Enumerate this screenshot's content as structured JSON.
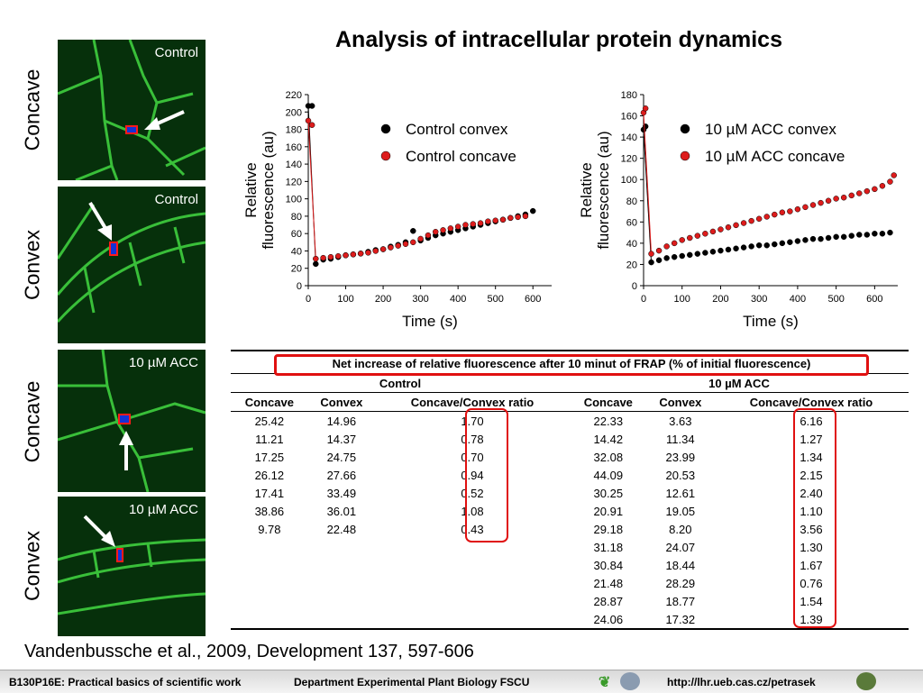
{
  "slide": {
    "title": "Analysis of intracellular protein dynamics",
    "caption": "Vandenbussche et al., 2009, Development 137, 597-606"
  },
  "images": [
    {
      "label": "Control",
      "side": "Concave"
    },
    {
      "label": "Control",
      "side": "Convex"
    },
    {
      "label": "10 µM ACC",
      "side": "Concave"
    },
    {
      "label": "10 µM ACC",
      "side": "Convex"
    }
  ],
  "chart_data": [
    {
      "type": "scatter",
      "xlabel": "Time (s)",
      "ylabel": "Relative fluorescence (au)",
      "xlim": [
        0,
        650
      ],
      "ylim": [
        0,
        220
      ],
      "xticks": [
        0,
        100,
        200,
        300,
        400,
        500,
        600
      ],
      "yticks": [
        0,
        20,
        40,
        60,
        80,
        100,
        120,
        140,
        160,
        180,
        200,
        220
      ],
      "legend_position": "top-right",
      "series": [
        {
          "name": "Control convex",
          "color": "#000000",
          "x": [
            0,
            10,
            20,
            40,
            60,
            80,
            100,
            120,
            140,
            160,
            180,
            200,
            220,
            240,
            260,
            280,
            300,
            320,
            340,
            360,
            380,
            400,
            420,
            440,
            460,
            480,
            500,
            520,
            540,
            560,
            580,
            600
          ],
          "y": [
            207,
            207,
            25,
            30,
            31,
            33,
            35,
            36,
            37,
            39,
            41,
            42,
            45,
            47,
            50,
            63,
            52,
            55,
            58,
            60,
            62,
            64,
            66,
            68,
            70,
            72,
            74,
            76,
            78,
            80,
            82,
            86
          ]
        },
        {
          "name": "Control concave",
          "color": "#dd1c1c",
          "x": [
            0,
            10,
            20,
            40,
            60,
            80,
            100,
            120,
            140,
            160,
            180,
            200,
            220,
            240,
            260,
            280,
            300,
            320,
            340,
            360,
            380,
            400,
            420,
            440,
            460,
            480,
            500,
            520,
            540,
            560,
            580
          ],
          "y": [
            190,
            185,
            31,
            32,
            33,
            34,
            35,
            36,
            37,
            38,
            40,
            42,
            44,
            46,
            48,
            50,
            54,
            58,
            62,
            64,
            66,
            68,
            70,
            71,
            72,
            74,
            75,
            76,
            78,
            79,
            80
          ]
        }
      ]
    },
    {
      "type": "scatter",
      "xlabel": "Time (s)",
      "ylabel": "Relative fluorescence (au)",
      "xlim": [
        0,
        660
      ],
      "ylim": [
        0,
        180
      ],
      "xticks": [
        0,
        100,
        200,
        300,
        400,
        500,
        600
      ],
      "yticks": [
        0,
        20,
        40,
        60,
        80,
        100,
        120,
        140,
        160,
        180
      ],
      "legend_position": "top-right",
      "series": [
        {
          "name": "10 µM ACC convex",
          "color": "#000000",
          "x": [
            0,
            5,
            20,
            40,
            60,
            80,
            100,
            120,
            140,
            160,
            180,
            200,
            220,
            240,
            260,
            280,
            300,
            320,
            340,
            360,
            380,
            400,
            420,
            440,
            460,
            480,
            500,
            520,
            540,
            560,
            580,
            600,
            620,
            640
          ],
          "y": [
            147,
            150,
            22,
            24,
            26,
            27,
            28,
            29,
            30,
            31,
            32,
            33,
            34,
            35,
            36,
            37,
            38,
            38,
            39,
            40,
            41,
            42,
            43,
            44,
            44,
            45,
            46,
            46,
            47,
            48,
            48,
            49,
            49,
            50
          ]
        },
        {
          "name": "10 µM ACC concave",
          "color": "#dd1c1c",
          "x": [
            0,
            5,
            20,
            40,
            60,
            80,
            100,
            120,
            140,
            160,
            180,
            200,
            220,
            240,
            260,
            280,
            300,
            320,
            340,
            360,
            380,
            400,
            420,
            440,
            460,
            480,
            500,
            520,
            540,
            560,
            580,
            600,
            620,
            640,
            650
          ],
          "y": [
            163,
            167,
            30,
            33,
            37,
            40,
            43,
            45,
            47,
            49,
            51,
            53,
            55,
            57,
            59,
            61,
            63,
            65,
            67,
            69,
            70,
            72,
            74,
            76,
            78,
            80,
            82,
            83,
            85,
            87,
            89,
            91,
            94,
            98,
            104
          ]
        }
      ]
    }
  ],
  "table": {
    "caption": "Net increase of relative fluorescence after 10 minut of FRAP (% of initial fluorescence)",
    "group_control": "Control",
    "group_acc": "10 µM ACC",
    "headers": [
      "Concave",
      "Convex",
      "Concave/Convex ratio",
      "Concave",
      "Convex",
      "Concave/Convex ratio"
    ],
    "rows": [
      [
        "25.42",
        "14.96",
        "1.70",
        "22.33",
        "3.63",
        "6.16"
      ],
      [
        "11.21",
        "14.37",
        "0.78",
        "14.42",
        "11.34",
        "1.27"
      ],
      [
        "17.25",
        "24.75",
        "0.70",
        "32.08",
        "23.99",
        "1.34"
      ],
      [
        "26.12",
        "27.66",
        "0.94",
        "44.09",
        "20.53",
        "2.15"
      ],
      [
        "17.41",
        "33.49",
        "0.52",
        "30.25",
        "12.61",
        "2.40"
      ],
      [
        "38.86",
        "36.01",
        "1.08",
        "20.91",
        "19.05",
        "1.10"
      ],
      [
        "9.78",
        "22.48",
        "0.43",
        "29.18",
        "8.20",
        "3.56"
      ],
      [
        "",
        "",
        "",
        "31.18",
        "24.07",
        "1.30"
      ],
      [
        "",
        "",
        "",
        "30.84",
        "18.44",
        "1.67"
      ],
      [
        "",
        "",
        "",
        "21.48",
        "28.29",
        "0.76"
      ],
      [
        "",
        "",
        "",
        "28.87",
        "18.77",
        "1.54"
      ],
      [
        "",
        "",
        "",
        "24.06",
        "17.32",
        "1.39"
      ]
    ]
  },
  "footer": {
    "course": "B130P16E: Practical basics of scientific work",
    "dept": "Department  Experimental Plant Biology  FSCU",
    "url": "http://lhr.ueb.cas.cz/petrasek"
  },
  "colors": {
    "accent_red": "#dd1c1c",
    "highlight_red": "#e01010",
    "cell_green": "#3fcf3f",
    "image_background": "#06300b"
  }
}
